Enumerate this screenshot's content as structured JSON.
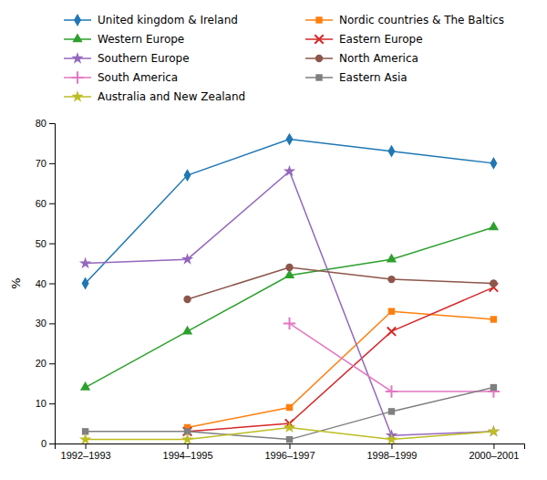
{
  "chart_data": {
    "type": "line",
    "y_label": "%",
    "categories": [
      "1992–1993",
      "1994–1995",
      "1996–1997",
      "1998–1999",
      "2000–2001"
    ],
    "series": [
      {
        "name": "United kingdom & Ireland",
        "marker": "diamond",
        "values": [
          40,
          67,
          76,
          73,
          70
        ]
      },
      {
        "name": "Nordic countries & The Baltics",
        "marker": "square",
        "values": [
          null,
          4,
          9,
          33,
          31
        ]
      },
      {
        "name": "Western Europe",
        "marker": "triangle",
        "values": [
          14,
          28,
          42,
          46,
          54
        ]
      },
      {
        "name": "Eastern Europe",
        "marker": "x",
        "values": [
          null,
          3,
          5,
          28,
          39
        ]
      },
      {
        "name": "Southern Europe",
        "marker": "star",
        "values": [
          45,
          46,
          68,
          2,
          3
        ]
      },
      {
        "name": "North America",
        "marker": "circle",
        "values": [
          null,
          36,
          44,
          41,
          40
        ]
      },
      {
        "name": "South America",
        "marker": "plus",
        "values": [
          null,
          null,
          30,
          13,
          13
        ]
      },
      {
        "name": "Eastern Asia",
        "marker": "square",
        "values": [
          3,
          3,
          1,
          8,
          14
        ]
      },
      {
        "name": "Australia and New Zealand",
        "marker": "star",
        "values": [
          1,
          1,
          4,
          1,
          3
        ]
      }
    ],
    "ylim": [
      0,
      80
    ],
    "yticks": [
      0,
      10,
      20,
      30,
      40,
      50,
      60,
      70,
      80
    ],
    "grid": false,
    "legend": "top"
  }
}
